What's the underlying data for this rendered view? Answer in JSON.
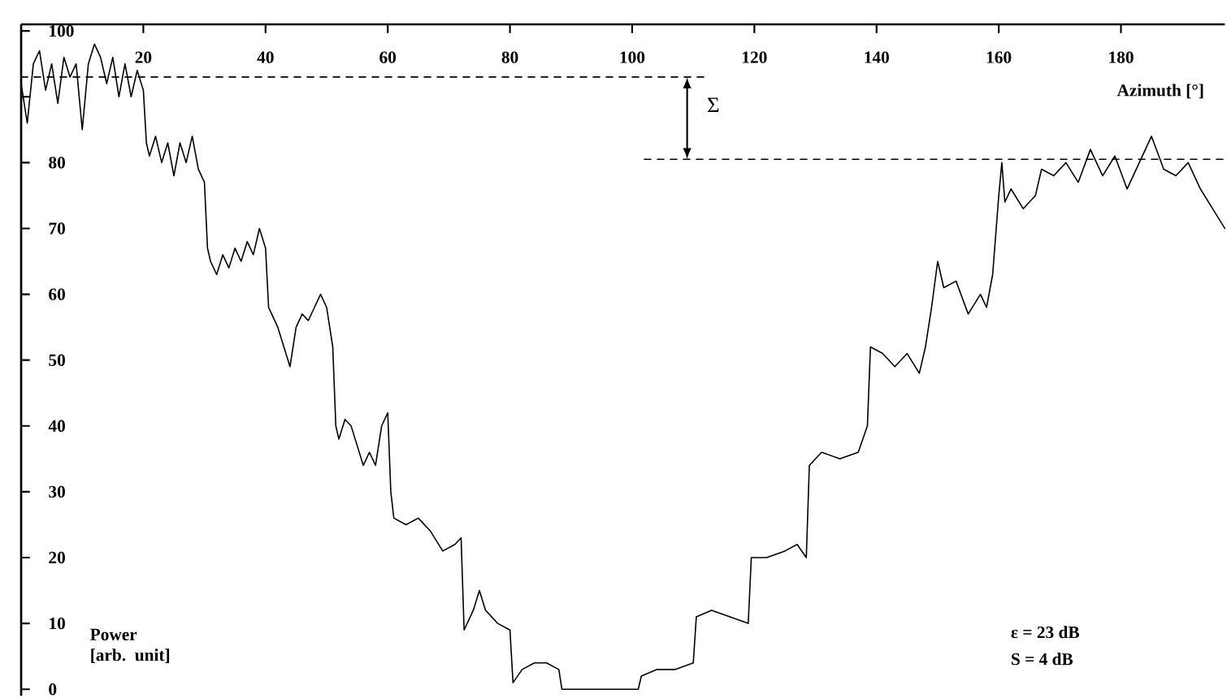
{
  "chart_data": {
    "type": "line",
    "xlabel": "Azimuth [°]",
    "ylabel": "Power [arb. unit]",
    "xlim": [
      0,
      197
    ],
    "ylim": [
      -1,
      101
    ],
    "xticks": [
      20,
      40,
      60,
      80,
      100,
      120,
      140,
      160,
      180
    ],
    "yticks": [
      0,
      10,
      20,
      30,
      40,
      50,
      60,
      70,
      80,
      {
        "value": 90,
        "label": null
      },
      100
    ],
    "series": [
      {
        "color": "#000000",
        "x": [
          0,
          1,
          2,
          3,
          4,
          5,
          6,
          7,
          8,
          9,
          10,
          11,
          12,
          13,
          14,
          15,
          16,
          17,
          18,
          19,
          20,
          20.5,
          21,
          22,
          23,
          24,
          25,
          26,
          27,
          28,
          29,
          30,
          30.5,
          31,
          32,
          33,
          34,
          35,
          36,
          37,
          38,
          39,
          40,
          40.5,
          41,
          42,
          43,
          44,
          45,
          46,
          47,
          48,
          49,
          50,
          51,
          51.5,
          52,
          53,
          54,
          55,
          56,
          57,
          58,
          59,
          60,
          60.5,
          61,
          63,
          65,
          67,
          69,
          71,
          72,
          72.5,
          74,
          75,
          76,
          78,
          80,
          80.5,
          82,
          84,
          86,
          88,
          88.5,
          95,
          101,
          101.5,
          104,
          107,
          110,
          110.5,
          113,
          116,
          119,
          119.5,
          122,
          125,
          127,
          128.5,
          129,
          131,
          134,
          137,
          138.5,
          139,
          141,
          143,
          145,
          147,
          148,
          149,
          150,
          151,
          153,
          155,
          157,
          158,
          159,
          160,
          160.5,
          161,
          162,
          164,
          166,
          167,
          169,
          171,
          173,
          175,
          177,
          179,
          181,
          183,
          185,
          187,
          189,
          191,
          193,
          195,
          197
        ],
        "values": [
          92,
          86,
          95,
          97,
          91,
          95,
          89,
          96,
          93,
          95,
          85,
          95,
          98,
          96,
          92,
          96,
          90,
          95,
          90,
          94,
          91,
          83,
          81,
          84,
          80,
          83,
          78,
          83,
          80,
          84,
          79,
          77,
          67,
          65,
          63,
          66,
          64,
          67,
          65,
          68,
          66,
          70,
          67,
          58,
          57,
          55,
          52,
          49,
          55,
          57,
          56,
          58,
          60,
          58,
          52,
          40,
          38,
          41,
          40,
          37,
          34,
          36,
          34,
          40,
          42,
          30,
          26,
          25,
          26,
          24,
          21,
          22,
          23,
          9,
          12,
          15,
          12,
          10,
          9,
          1,
          3,
          4,
          4,
          3,
          0,
          0,
          0,
          2,
          3,
          3,
          4,
          11,
          12,
          11,
          10,
          20,
          20,
          21,
          22,
          20,
          34,
          36,
          35,
          36,
          40,
          52,
          51,
          49,
          51,
          48,
          52,
          58,
          65,
          61,
          62,
          57,
          60,
          58,
          63,
          75,
          80,
          74,
          76,
          73,
          75,
          79,
          78,
          80,
          77,
          82,
          78,
          81,
          76,
          80,
          84,
          79,
          78,
          80,
          76,
          73,
          70
        ]
      },
      {
        "color": "#000000",
        "line_style": "dashed",
        "x": [
          0,
          112
        ],
        "values": [
          93,
          93
        ]
      },
      {
        "color": "#000000",
        "line_style": "dashed",
        "x": [
          102,
          197
        ],
        "values": [
          80.5,
          80.5
        ]
      }
    ],
    "annotations": [
      "Σ",
      "ε = 23 dB",
      "S = 4 dB"
    ]
  }
}
